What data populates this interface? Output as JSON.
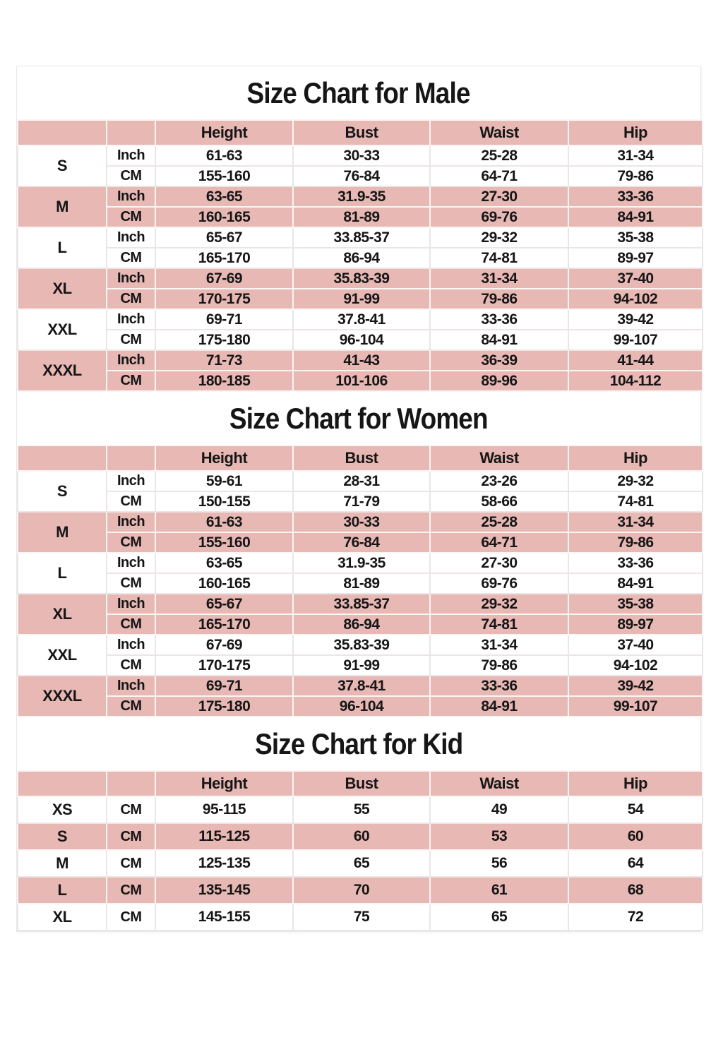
{
  "page": {
    "background": "#ffffff",
    "frame_border_color": "#e9e9e9",
    "accent_pink": "#e7b8b4",
    "text_color": "#161616"
  },
  "tables": [
    {
      "title": "Size Chart for Male",
      "headers": [
        "Height",
        "Bust",
        "Waist",
        "Hip"
      ],
      "rows": [
        {
          "size": "S",
          "tone": "white",
          "measurements": [
            {
              "unit": "Inch",
              "values": [
                "61-63",
                "30-33",
                "25-28",
                "31-34"
              ]
            },
            {
              "unit": "CM",
              "values": [
                "155-160",
                "76-84",
                "64-71",
                "79-86"
              ]
            }
          ]
        },
        {
          "size": "M",
          "tone": "pink",
          "measurements": [
            {
              "unit": "Inch",
              "values": [
                "63-65",
                "31.9-35",
                "27-30",
                "33-36"
              ]
            },
            {
              "unit": "CM",
              "values": [
                "160-165",
                "81-89",
                "69-76",
                "84-91"
              ]
            }
          ]
        },
        {
          "size": "L",
          "tone": "white",
          "measurements": [
            {
              "unit": "Inch",
              "values": [
                "65-67",
                "33.85-37",
                "29-32",
                "35-38"
              ]
            },
            {
              "unit": "CM",
              "values": [
                "165-170",
                "86-94",
                "74-81",
                "89-97"
              ]
            }
          ]
        },
        {
          "size": "XL",
          "tone": "pink",
          "measurements": [
            {
              "unit": "Inch",
              "values": [
                "67-69",
                "35.83-39",
                "31-34",
                "37-40"
              ]
            },
            {
              "unit": "CM",
              "values": [
                "170-175",
                "91-99",
                "79-86",
                "94-102"
              ]
            }
          ]
        },
        {
          "size": "XXL",
          "tone": "white",
          "measurements": [
            {
              "unit": "Inch",
              "values": [
                "69-71",
                "37.8-41",
                "33-36",
                "39-42"
              ]
            },
            {
              "unit": "CM",
              "values": [
                "175-180",
                "96-104",
                "84-91",
                "99-107"
              ]
            }
          ]
        },
        {
          "size": "XXXL",
          "tone": "pink",
          "measurements": [
            {
              "unit": "Inch",
              "values": [
                "71-73",
                "41-43",
                "36-39",
                "41-44"
              ]
            },
            {
              "unit": "CM",
              "values": [
                "180-185",
                "101-106",
                "89-96",
                "104-112"
              ]
            }
          ]
        }
      ]
    },
    {
      "title": "Size Chart for Women",
      "headers": [
        "Height",
        "Bust",
        "Waist",
        "Hip"
      ],
      "rows": [
        {
          "size": "S",
          "tone": "white",
          "measurements": [
            {
              "unit": "Inch",
              "values": [
                "59-61",
                "28-31",
                "23-26",
                "29-32"
              ]
            },
            {
              "unit": "CM",
              "values": [
                "150-155",
                "71-79",
                "58-66",
                "74-81"
              ]
            }
          ]
        },
        {
          "size": "M",
          "tone": "pink",
          "measurements": [
            {
              "unit": "Inch",
              "values": [
                "61-63",
                "30-33",
                "25-28",
                "31-34"
              ]
            },
            {
              "unit": "CM",
              "values": [
                "155-160",
                "76-84",
                "64-71",
                "79-86"
              ]
            }
          ]
        },
        {
          "size": "L",
          "tone": "white",
          "measurements": [
            {
              "unit": "Inch",
              "values": [
                "63-65",
                "31.9-35",
                "27-30",
                "33-36"
              ]
            },
            {
              "unit": "CM",
              "values": [
                "160-165",
                "81-89",
                "69-76",
                "84-91"
              ]
            }
          ]
        },
        {
          "size": "XL",
          "tone": "pink",
          "measurements": [
            {
              "unit": "Inch",
              "values": [
                "65-67",
                "33.85-37",
                "29-32",
                "35-38"
              ]
            },
            {
              "unit": "CM",
              "values": [
                "165-170",
                "86-94",
                "74-81",
                "89-97"
              ]
            }
          ]
        },
        {
          "size": "XXL",
          "tone": "white",
          "measurements": [
            {
              "unit": "Inch",
              "values": [
                "67-69",
                "35.83-39",
                "31-34",
                "37-40"
              ]
            },
            {
              "unit": "CM",
              "values": [
                "170-175",
                "91-99",
                "79-86",
                "94-102"
              ]
            }
          ]
        },
        {
          "size": "XXXL",
          "tone": "pink",
          "measurements": [
            {
              "unit": "Inch",
              "values": [
                "69-71",
                "37.8-41",
                "33-36",
                "39-42"
              ]
            },
            {
              "unit": "CM",
              "values": [
                "175-180",
                "96-104",
                "84-91",
                "99-107"
              ]
            }
          ]
        }
      ]
    },
    {
      "title": "Size Chart for Kid",
      "headers": [
        "Height",
        "Bust",
        "Waist",
        "Hip"
      ],
      "rows": [
        {
          "size": "XS",
          "tone": "white",
          "measurements": [
            {
              "unit": "CM",
              "values": [
                "95-115",
                "55",
                "49",
                "54"
              ]
            }
          ]
        },
        {
          "size": "S",
          "tone": "pink",
          "measurements": [
            {
              "unit": "CM",
              "values": [
                "115-125",
                "60",
                "53",
                "60"
              ]
            }
          ]
        },
        {
          "size": "M",
          "tone": "white",
          "measurements": [
            {
              "unit": "CM",
              "values": [
                "125-135",
                "65",
                "56",
                "64"
              ]
            }
          ]
        },
        {
          "size": "L",
          "tone": "pink",
          "measurements": [
            {
              "unit": "CM",
              "values": [
                "135-145",
                "70",
                "61",
                "68"
              ]
            }
          ]
        },
        {
          "size": "XL",
          "tone": "white",
          "measurements": [
            {
              "unit": "CM",
              "values": [
                "145-155",
                "75",
                "65",
                "72"
              ]
            }
          ]
        }
      ]
    }
  ]
}
